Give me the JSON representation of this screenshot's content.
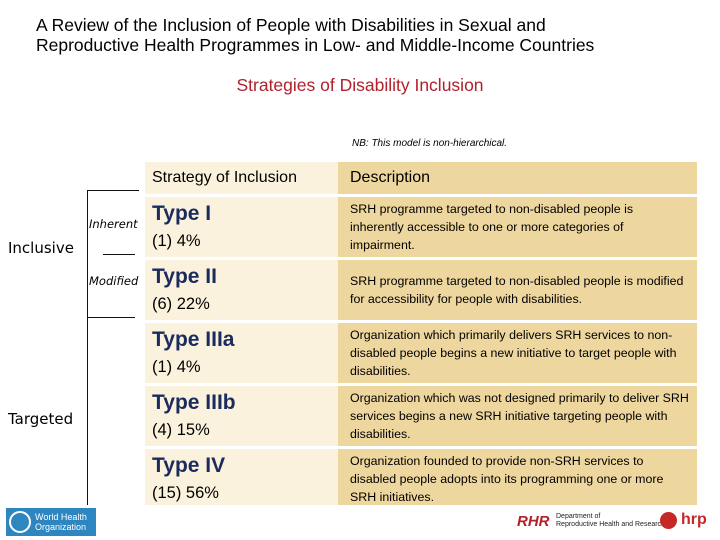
{
  "header": {
    "title_line1": "A Review of the Inclusion of People with Disabilities in Sexual and",
    "title_line2": "Reproductive Health Programmes in Low- and Middle-Income Countries",
    "subtitle": "Strategies of Disability Inclusion",
    "note": "NB: This model is non-hierarchical."
  },
  "table": {
    "col_strategy": "Strategy of Inclusion",
    "col_description": "Description",
    "rows": [
      {
        "type": "Type I",
        "value": "(1) 4%",
        "description": "SRH programme targeted to non-disabled people is inherently accessible to one or more categories of impairment."
      },
      {
        "type": "Type II",
        "value": "(6) 22%",
        "description": "SRH programme targeted to non-disabled people is modified for accessibility for people with disabilities."
      },
      {
        "type": "Type IIIa",
        "value": "(1) 4%",
        "description": "Organization which primarily delivers SRH services to non-disabled people begins a new initiative to target people with disabilities."
      },
      {
        "type": "Type IIIb",
        "value": "(4) 15%",
        "description": "Organization which was not designed primarily to deliver SRH services begins a new SRH initiative targeting people with disabilities."
      },
      {
        "type": "Type IV",
        "value": "(15) 56%",
        "description": "Organization founded to provide non-SRH services to disabled people adopts into its programming one or more SRH initiatives."
      }
    ]
  },
  "labels": {
    "inclusive": "Inclusive",
    "targeted": "Targeted",
    "inherent": "Inherent",
    "modified": "Modified"
  },
  "footer": {
    "who_line1": "World Health",
    "who_line2": "Organization",
    "rhr_mark": "RHR",
    "rhr_line1": "Department of",
    "rhr_line2": "Reproductive Health and Research",
    "hrp": "hrp"
  },
  "colors": {
    "strategy_cell": "#fbf2dd",
    "description_cell": "#eed79f",
    "subtitle": "#b2202b",
    "type_label": "#1b2b5e"
  }
}
